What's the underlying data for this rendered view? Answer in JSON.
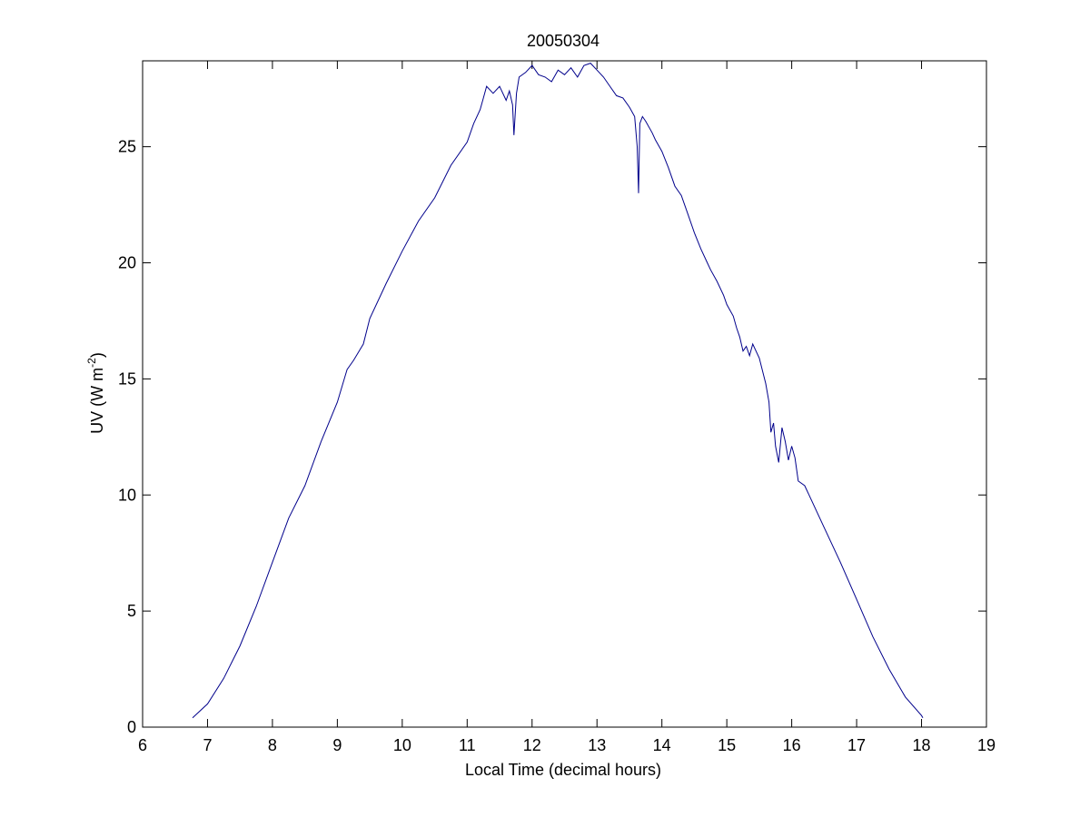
{
  "chart_data": {
    "type": "line",
    "title": "20050304",
    "xlabel": "Local Time (decimal hours)",
    "ylabel": {
      "main": "UV (W m",
      "superscript": "-2",
      "close": ")"
    },
    "xlim": [
      6,
      19
    ],
    "ylim": [
      0,
      28.7
    ],
    "x_ticks": [
      6,
      7,
      8,
      9,
      10,
      11,
      12,
      13,
      14,
      15,
      16,
      17,
      18,
      19
    ],
    "y_ticks": [
      0,
      5,
      10,
      15,
      20,
      25
    ],
    "grid": false,
    "legend": "none",
    "line_color": "#00008b",
    "series": [
      {
        "x": [
          6.77,
          7.0,
          7.25,
          7.5,
          7.75,
          8.0,
          8.25,
          8.5,
          8.75,
          9.0,
          9.15,
          9.25,
          9.4,
          9.5,
          9.75,
          10.0,
          10.25,
          10.5,
          10.75,
          11.0,
          11.1,
          11.2,
          11.25,
          11.3,
          11.4,
          11.5,
          11.6,
          11.65,
          11.7,
          11.72,
          11.76,
          11.8,
          11.9,
          12.0,
          12.1,
          12.2,
          12.3,
          12.4,
          12.5,
          12.6,
          12.7,
          12.8,
          12.9,
          13.0,
          13.1,
          13.2,
          13.3,
          13.4,
          13.5,
          13.58,
          13.62,
          13.64,
          13.66,
          13.7,
          13.75,
          13.85,
          13.9,
          14.0,
          14.1,
          14.2,
          14.3,
          14.4,
          14.5,
          14.6,
          14.7,
          14.75,
          14.85,
          14.95,
          15.0,
          15.1,
          15.15,
          15.2,
          15.25,
          15.3,
          15.35,
          15.4,
          15.5,
          15.6,
          15.65,
          15.68,
          15.72,
          15.75,
          15.8,
          15.85,
          15.9,
          15.95,
          16.0,
          16.05,
          16.1,
          16.2,
          16.3,
          16.5,
          16.75,
          17.0,
          17.25,
          17.5,
          17.75,
          18.0,
          18.02
        ],
        "y": [
          0.4,
          1.0,
          2.1,
          3.5,
          5.2,
          7.1,
          9.0,
          10.4,
          12.3,
          14.0,
          15.4,
          15.8,
          16.5,
          17.6,
          19.1,
          20.5,
          21.8,
          22.8,
          24.2,
          25.2,
          26.0,
          26.6,
          27.1,
          27.6,
          27.3,
          27.6,
          27.0,
          27.4,
          26.8,
          25.5,
          27.3,
          28.0,
          28.2,
          28.5,
          28.1,
          28.0,
          27.8,
          28.3,
          28.1,
          28.4,
          28.0,
          28.5,
          28.6,
          28.3,
          28.0,
          27.6,
          27.2,
          27.1,
          26.7,
          26.3,
          25.0,
          23.0,
          26.0,
          26.3,
          26.1,
          25.6,
          25.3,
          24.8,
          24.1,
          23.3,
          22.9,
          22.1,
          21.3,
          20.6,
          20.0,
          19.7,
          19.2,
          18.6,
          18.2,
          17.7,
          17.2,
          16.8,
          16.2,
          16.4,
          16.0,
          16.5,
          15.9,
          14.8,
          14.0,
          12.7,
          13.1,
          12.1,
          11.4,
          12.9,
          12.3,
          11.5,
          12.1,
          11.6,
          10.6,
          10.4,
          9.8,
          8.6,
          7.1,
          5.5,
          3.9,
          2.5,
          1.3,
          0.5,
          0.4
        ]
      }
    ]
  }
}
